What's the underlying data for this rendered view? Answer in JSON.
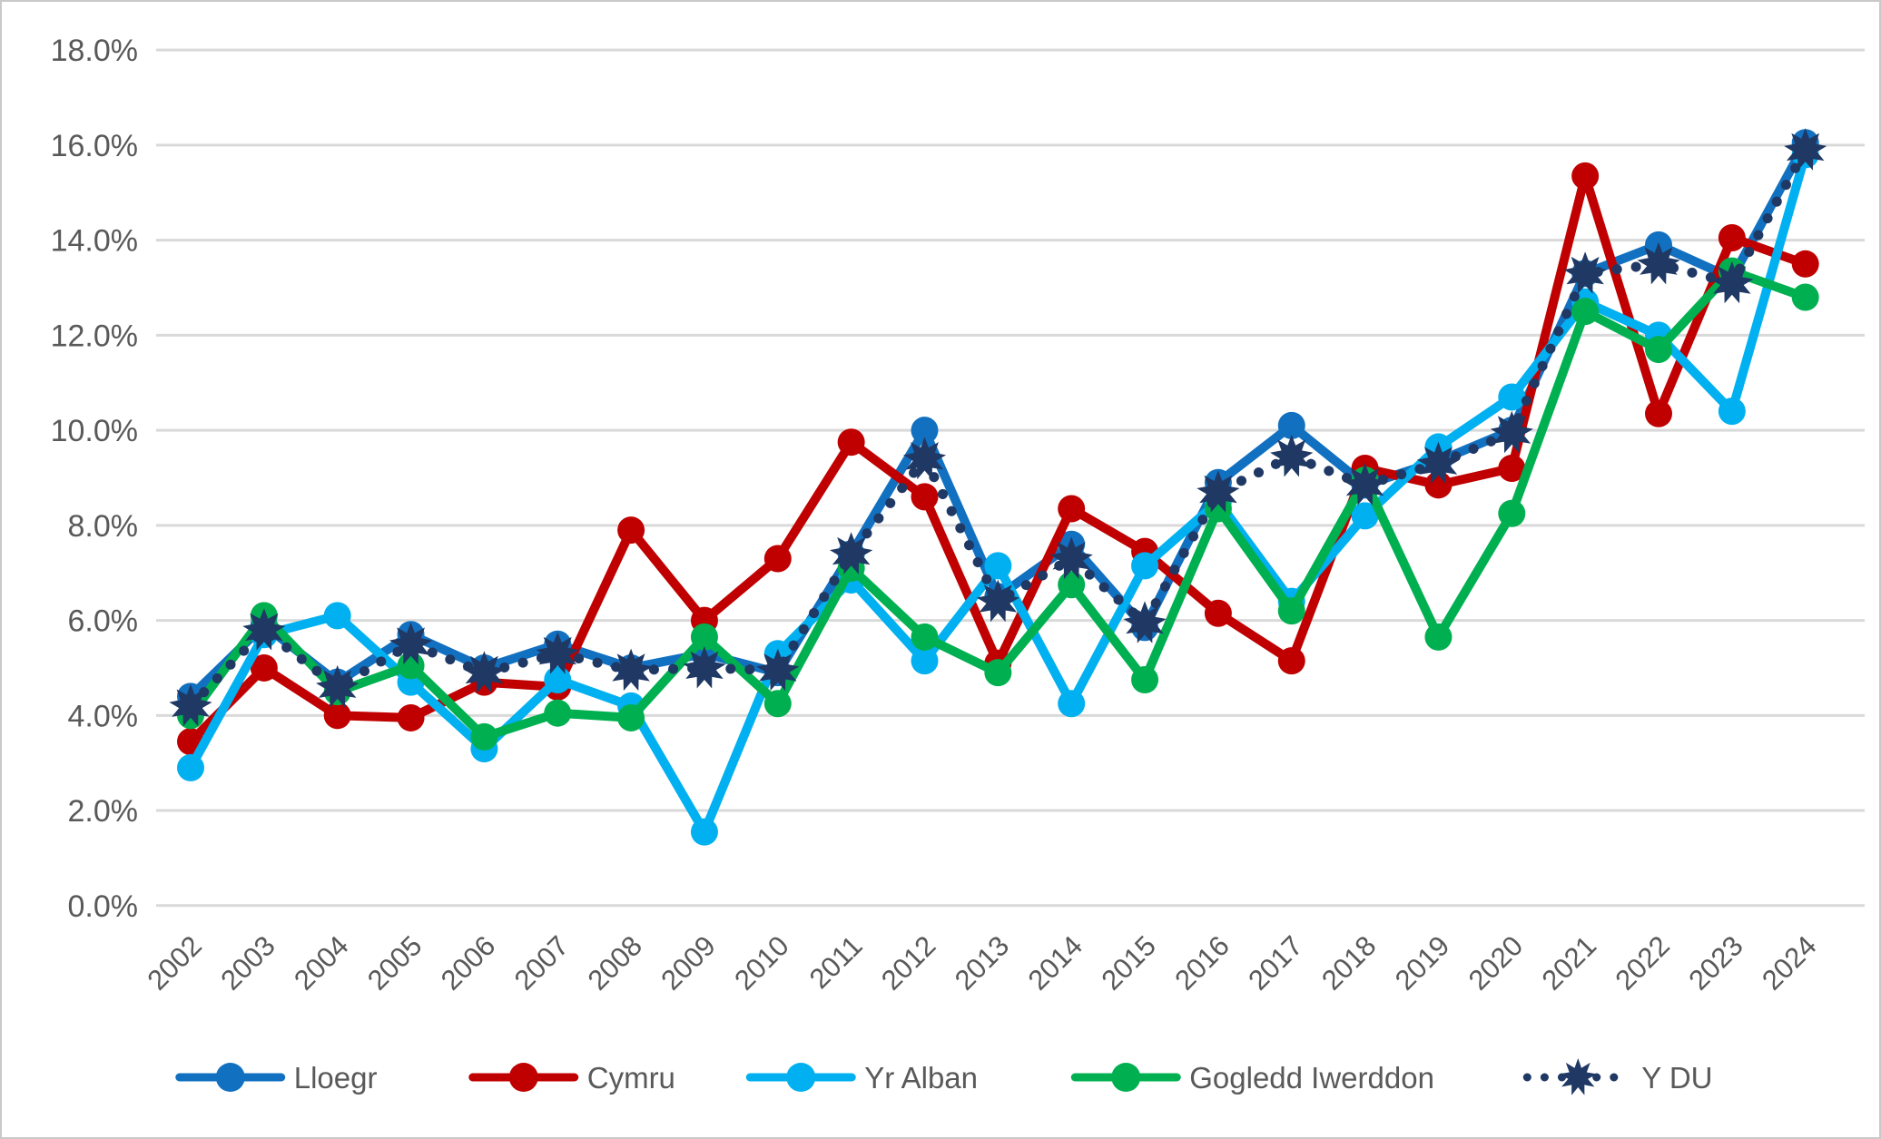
{
  "chart_data": {
    "type": "line",
    "title": "",
    "xlabel": "",
    "ylabel": "",
    "ylim": [
      0,
      18
    ],
    "ytick_step": 2,
    "y_tick_labels": [
      "0.0%",
      "2.0%",
      "4.0%",
      "6.0%",
      "8.0%",
      "10.0%",
      "12.0%",
      "14.0%",
      "16.0%",
      "18.0%"
    ],
    "grid": true,
    "legend_position": "bottom",
    "x": [
      "2002",
      "2003",
      "2004",
      "2005",
      "2006",
      "2007",
      "2008",
      "2009",
      "2010",
      "2011",
      "2012",
      "2013",
      "2014",
      "2015",
      "2016",
      "2017",
      "2018",
      "2019",
      "2020",
      "2021",
      "2022",
      "2023",
      "2024"
    ],
    "series": [
      {
        "name": "Lloegr",
        "color": "#1170C0",
        "line": "solid",
        "marker": "circle",
        "values": [
          4.4,
          5.9,
          4.7,
          5.7,
          5.0,
          5.5,
          5.0,
          5.3,
          4.9,
          7.4,
          10.0,
          6.5,
          7.6,
          5.85,
          8.9,
          10.1,
          8.85,
          9.35,
          10.0,
          13.3,
          13.9,
          13.2,
          16.05
        ]
      },
      {
        "name": "Cymru",
        "color": "#C00000",
        "line": "solid",
        "marker": "circle",
        "values": [
          3.45,
          5.0,
          4.0,
          3.95,
          4.7,
          4.6,
          7.9,
          6.0,
          7.3,
          9.75,
          8.6,
          5.1,
          8.35,
          7.45,
          6.15,
          5.15,
          9.2,
          8.85,
          9.2,
          15.35,
          10.35,
          14.05,
          13.5
        ]
      },
      {
        "name": "Yr Alban",
        "color": "#00B0F0",
        "line": "solid",
        "marker": "circle",
        "values": [
          2.9,
          5.7,
          6.1,
          4.7,
          3.3,
          4.75,
          4.2,
          1.55,
          5.3,
          6.85,
          5.15,
          7.15,
          4.25,
          7.15,
          8.5,
          6.4,
          8.2,
          9.65,
          10.7,
          12.7,
          12.0,
          10.4,
          15.8
        ]
      },
      {
        "name": "Gogledd Iwerddon",
        "color": "#00B050",
        "line": "solid",
        "marker": "circle",
        "values": [
          4.0,
          6.1,
          4.5,
          5.05,
          3.55,
          4.05,
          3.95,
          5.65,
          4.25,
          7.1,
          5.65,
          4.9,
          6.75,
          4.75,
          8.35,
          6.2,
          8.95,
          5.65,
          8.25,
          12.5,
          11.7,
          13.35,
          12.8
        ]
      },
      {
        "name": "Y DU",
        "color": "#1F3864",
        "line": "dotted",
        "marker": "star",
        "values": [
          4.2,
          5.8,
          4.6,
          5.5,
          4.9,
          5.3,
          4.95,
          5.0,
          4.95,
          7.4,
          9.4,
          6.4,
          7.3,
          5.95,
          8.7,
          9.45,
          8.85,
          9.3,
          9.95,
          13.3,
          13.5,
          13.1,
          15.9
        ]
      }
    ],
    "style": {
      "gridline_color": "#D9D9D9",
      "axis_text_color": "#595959",
      "background": "#FFFFFF",
      "border_color": "#C9C9C9"
    }
  }
}
